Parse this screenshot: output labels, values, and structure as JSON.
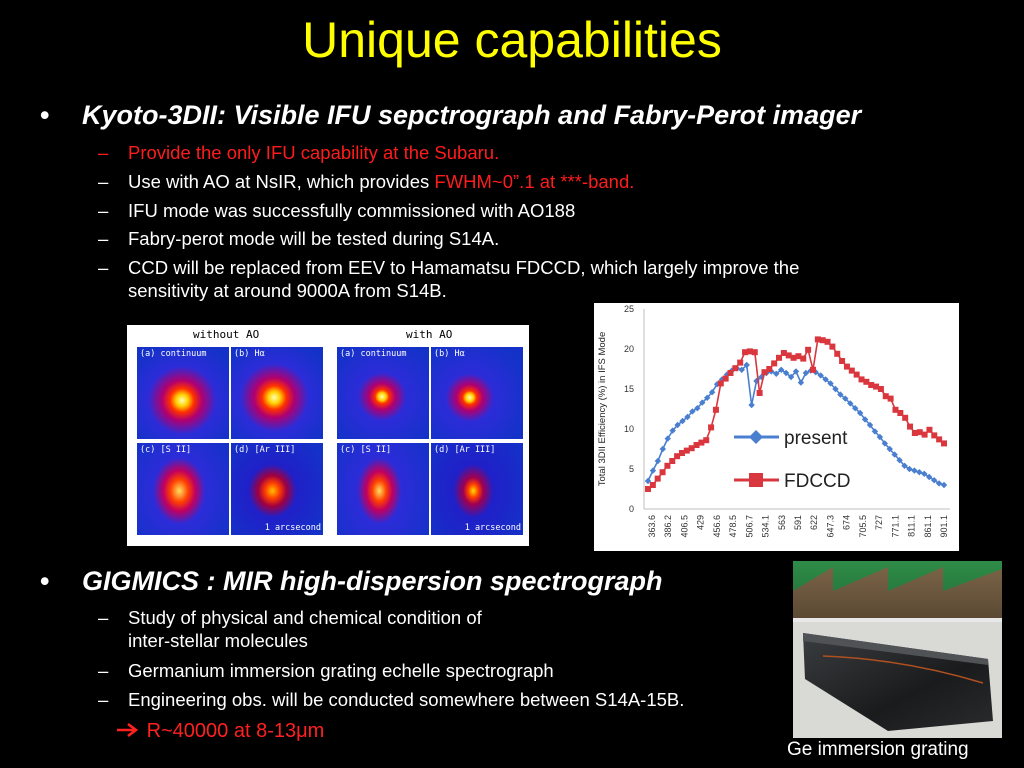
{
  "slide": {
    "title": "Unique capabilities",
    "bullet1": {
      "marker": "•",
      "text": "Kyoto-3DII:  Visible IFU sepctrograph and Fabry-Perot imager",
      "items": [
        {
          "dash": "–",
          "text": "Provide the only IFU capability at the Subaru."
        },
        {
          "dash": "–",
          "text_a": "Use with AO at NsIR, which provides ",
          "text_b": "FWHM~0”.1 at ***-band."
        },
        {
          "dash": "–",
          "text": "IFU mode was successfully commissioned with AO188"
        },
        {
          "dash": "–",
          "text": "Fabry-perot mode will be tested during S14A."
        },
        {
          "dash": "–",
          "line1": "CCD will be replaced from EEV to Hamamatsu FDCCD, which largely improve the",
          "line2": "sensitivity at around 9000A from S14B."
        }
      ]
    },
    "bullet2": {
      "marker": "•",
      "text": "GIGMICS : MIR high-dispersion spectrograph",
      "items": [
        {
          "dash": "–",
          "line1": "Study of physical and chemical condition of",
          "line2": "inter-stellar molecules"
        },
        {
          "dash": "–",
          "text": "Germanium immersion grating echelle spectrograph"
        },
        {
          "dash": "–",
          "text": "Engineering obs. will be conducted somewhere between S14A-15B."
        }
      ],
      "result": "R~40000 at 8-13μm"
    },
    "ifu_figure": {
      "header_left": "without AO",
      "header_right": "with AO",
      "tiles": [
        "(a) continuum",
        "(b) Hα",
        "(c) [S II]",
        "(d) [Ar III]",
        "(a) continuum",
        "(b) Hα",
        "(c) [S II]",
        "(d) [Ar III]"
      ],
      "scale_label": "1 arcsecond"
    },
    "photo_caption": "Ge immersion grating",
    "colors": {
      "title": "#ffff00",
      "highlight": "#ff1c1c",
      "present": "#4a7fd0",
      "fdccd": "#d9363e"
    }
  },
  "chart_data": {
    "type": "line",
    "ylabel": "Total 3DII Efficiency (%) in IFS Mode",
    "ylim": [
      0,
      25
    ],
    "yticks": [
      0,
      5,
      10,
      15,
      20,
      25
    ],
    "xticks": [
      "363.6",
      "386.2",
      "406.5",
      "429",
      "456.6",
      "478.5",
      "506.7",
      "534.1",
      "563",
      "591",
      "622",
      "647.3",
      "674",
      "705.5",
      "727",
      "771.1",
      "811.1",
      "861.1",
      "901.1"
    ],
    "legend_placement": "center",
    "series": [
      {
        "name": "present",
        "values": [
          3.5,
          4.8,
          6,
          7.5,
          8.8,
          9.8,
          10.5,
          11,
          11.5,
          12.2,
          12.6,
          13.3,
          13.9,
          14.6,
          15.6,
          16.2,
          16.8,
          17.3,
          17.6,
          17.4,
          18,
          13,
          16,
          16.5,
          17,
          17.2,
          16.9,
          17.4,
          17,
          16.5,
          17.2,
          15.8,
          17,
          17.3,
          17.1,
          16.7,
          16.2,
          15.7,
          15,
          14.3,
          13.8,
          13.2,
          12.6,
          12,
          11.2,
          10.5,
          9.7,
          9,
          8.2,
          7.5,
          6.8,
          6.1,
          5.4,
          5,
          4.8,
          4.6,
          4.4,
          4,
          3.6,
          3.2,
          3
        ]
      },
      {
        "name": "FDCCD",
        "values": [
          2.5,
          3,
          3.8,
          4.6,
          5.4,
          6,
          6.6,
          7,
          7.3,
          7.6,
          8,
          8.3,
          8.6,
          10.2,
          12.4,
          15.7,
          16.3,
          17,
          17.6,
          18.3,
          19.6,
          19.7,
          19.6,
          14.5,
          17.1,
          17.5,
          18.2,
          18.9,
          19.5,
          19.2,
          18.9,
          19.1,
          18.8,
          19.9,
          17.4,
          21.2,
          21.1,
          20.9,
          20.3,
          19.4,
          18.5,
          17.8,
          17.3,
          16.8,
          16.2,
          15.9,
          15.5,
          15.3,
          15,
          14.1,
          13.8,
          12.4,
          12,
          11.4,
          10.3,
          9.5,
          9.6,
          9.3,
          9.9,
          9.2,
          8.7,
          8.2
        ]
      }
    ]
  }
}
